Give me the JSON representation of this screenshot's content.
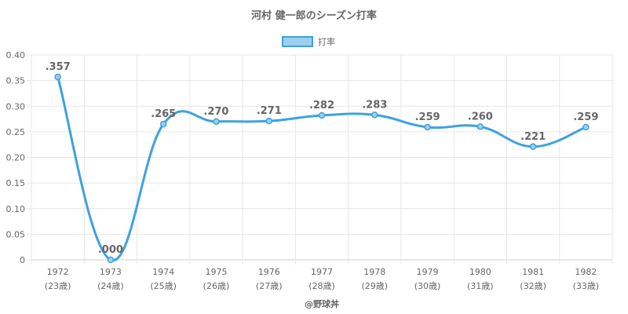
{
  "chart_data": {
    "type": "line",
    "title": "河村 健一郎のシーズン打率",
    "categories": [
      "1972",
      "1973",
      "1974",
      "1975",
      "1976",
      "1977",
      "1978",
      "1979",
      "1980",
      "1981",
      "1982"
    ],
    "category_sublabels": [
      "(23歳)",
      "(24歳)",
      "(25歳)",
      "(26歳)",
      "(27歳)",
      "(28歳)",
      "(29歳)",
      "(30歳)",
      "(31歳)",
      "(32歳)",
      "(33歳)"
    ],
    "series": [
      {
        "name": "打率",
        "values": [
          0.357,
          0.0,
          0.265,
          0.27,
          0.271,
          0.282,
          0.283,
          0.259,
          0.26,
          0.221,
          0.259
        ],
        "labels": [
          ".357",
          ".000",
          ".265",
          ".270",
          ".271",
          ".282",
          ".283",
          ".259",
          ".260",
          ".221",
          ".259"
        ]
      }
    ],
    "ylim": [
      0,
      0.4
    ],
    "yticks": [
      0,
      0.05,
      0.1,
      0.15,
      0.2,
      0.25,
      0.3,
      0.35,
      0.4
    ],
    "ytick_labels": [
      "0",
      "0.05",
      "0.10",
      "0.15",
      "0.20",
      "0.25",
      "0.30",
      "0.35",
      "0.40"
    ],
    "grid": true,
    "legend_position": "top-center",
    "colors": {
      "line": "#3ea1e0",
      "fill": "#9ccff0"
    },
    "credit": "@野球丼"
  }
}
